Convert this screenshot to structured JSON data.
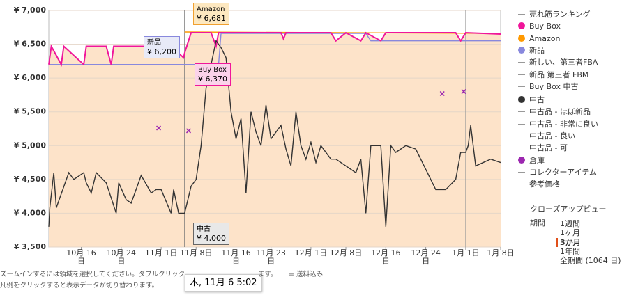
{
  "chart_data": {
    "type": "line",
    "xlim": [
      -6.5,
      84
    ],
    "xticks": [
      {
        "value": 0,
        "label": "10月 16\n日"
      },
      {
        "value": 8,
        "label": "10月 24\n日"
      },
      {
        "value": 16,
        "label": "11月 1日"
      },
      {
        "value": 23,
        "label": "11月 8日"
      },
      {
        "value": 31,
        "label": "11月 16\n日"
      },
      {
        "value": 38,
        "label": "11月 23\n日"
      },
      {
        "value": 46,
        "label": "12月 1日"
      },
      {
        "value": 53,
        "label": "12月 8日"
      },
      {
        "value": 61,
        "label": "12月 16\n日"
      },
      {
        "value": 69,
        "label": "12月 24\n日"
      },
      {
        "value": 77,
        "label": "1月 1日"
      },
      {
        "value": 84,
        "label": "1月 8日"
      }
    ],
    "ylim": [
      3500,
      7000
    ],
    "yticks": [
      {
        "value": 3500,
        "label": "¥ 3,500"
      },
      {
        "value": 4000,
        "label": "¥ 4,000"
      },
      {
        "value": 4500,
        "label": "¥ 4,500"
      },
      {
        "value": 5000,
        "label": "¥ 5,000"
      },
      {
        "value": 5500,
        "label": "¥ 5,500"
      },
      {
        "value": 6000,
        "label": "¥ 6,000"
      },
      {
        "value": 6500,
        "label": "¥ 6,500"
      },
      {
        "value": 7000,
        "label": "¥ 7,000"
      }
    ],
    "grid": true,
    "cursor": 20.7,
    "cursor_label": "木, 11月 6 5:02",
    "series": [
      {
        "name": "Buy Box",
        "color": "#f0169a",
        "fill": "#fde3c9",
        "x": [
          -6.5,
          -6,
          -4,
          -3.5,
          0.5,
          1,
          5,
          6,
          6.5,
          18,
          20.5,
          20.7,
          22,
          26,
          27,
          27.5,
          40,
          40.5,
          41,
          50,
          51,
          53,
          56,
          57,
          60,
          61,
          75,
          76,
          77,
          84
        ],
        "values": [
          6200,
          6470,
          6200,
          6470,
          6200,
          6470,
          6470,
          6200,
          6470,
          6470,
          6300,
          6370,
          6670,
          6670,
          6470,
          6670,
          6670,
          6580,
          6670,
          6670,
          6550,
          6670,
          6550,
          6670,
          6550,
          6670,
          6670,
          6550,
          6670,
          6650
        ],
        "tooltip": {
          "value": 6370,
          "label": "¥ 6,370"
        }
      },
      {
        "name": "Amazon",
        "color": "#ff9900",
        "x": [
          20.7,
          84
        ],
        "values": [
          6681,
          6660
        ],
        "tooltip": {
          "value": 6681,
          "label": "¥ 6,681"
        }
      },
      {
        "name": "新品",
        "color": "#8888dd",
        "x": [
          -6.5,
          20.7,
          27.5,
          28,
          57,
          58,
          84
        ],
        "values": [
          6200,
          6200,
          6200,
          6660,
          6660,
          6550,
          6550
        ],
        "tooltip": {
          "value": 6200,
          "label": "¥ 6,200"
        }
      },
      {
        "name": "中古",
        "color": "#333333",
        "x": [
          -6.5,
          -6.3,
          -5.5,
          -5,
          -2.5,
          -1.5,
          0.5,
          1,
          2,
          3,
          5,
          7,
          7.5,
          9,
          10,
          12,
          14,
          15,
          16,
          18,
          18.5,
          19.5,
          20.7,
          22,
          23,
          24,
          25,
          26,
          27,
          28,
          29,
          30,
          31,
          32,
          33,
          34,
          35,
          36,
          37,
          38,
          40,
          41,
          42,
          43,
          44,
          45,
          46,
          47,
          48,
          50,
          51,
          53,
          55,
          56,
          57,
          58,
          60,
          61,
          62,
          63,
          65,
          67,
          71,
          73,
          75,
          76,
          77,
          77.5,
          78,
          79,
          82,
          84
        ],
        "values": [
          3800,
          4080,
          4600,
          4080,
          4600,
          4500,
          4600,
          4450,
          4300,
          4600,
          4450,
          4000,
          4450,
          4200,
          4150,
          4560,
          4300,
          4350,
          4350,
          4000,
          4350,
          4000,
          4000,
          4400,
          4500,
          5000,
          5850,
          6200,
          6550,
          6450,
          6300,
          5500,
          5100,
          5400,
          4300,
          5500,
          5200,
          5000,
          5600,
          5100,
          5300,
          4950,
          4700,
          5500,
          5000,
          4800,
          5050,
          4750,
          5000,
          4800,
          4800,
          4700,
          4600,
          4800,
          4000,
          5000,
          5000,
          3800,
          5000,
          4900,
          5000,
          4950,
          4350,
          4350,
          4500,
          4900,
          4900,
          5000,
          5300,
          4700,
          4800,
          4750
        ],
        "tooltip": {
          "value": 4000,
          "label": "¥ 4,000"
        }
      },
      {
        "color": "#9c27b0",
        "marker": "x",
        "x": [
          15.5,
          21.5,
          72.3,
          76.6
        ],
        "values": [
          5260,
          5220,
          5770,
          5800
        ]
      }
    ],
    "legend": [
      {
        "name": "売れ筋ランキング"
      },
      {
        "name": "Buy Box",
        "color": "#f0169a"
      },
      {
        "name": "Amazon",
        "color": "#ff9900"
      },
      {
        "name": "新品",
        "color": "#8888dd"
      },
      {
        "name": "新しい、第三者FBA"
      },
      {
        "name": "新品 第三者 FBM"
      },
      {
        "name": "Buy Box 中古"
      },
      {
        "name": "中古",
        "color": "#333333"
      },
      {
        "name": "中古品 - ほぼ新品"
      },
      {
        "name": "中古品 - 非常に良い"
      },
      {
        "name": "中古品 - 良い"
      },
      {
        "name": "中古品 - 可"
      },
      {
        "name": "倉庫",
        "color": "#9c27b0"
      },
      {
        "name": "コレクターアイテム"
      },
      {
        "name": "参考価格"
      }
    ],
    "closeup": "クローズアップビュー",
    "period_label": "期間",
    "periods": [
      "1週間",
      "1ヶ月",
      "3か月",
      "1年間",
      "全期間 (1064 日)"
    ],
    "period_selected": 2,
    "notes": [
      "ズームインするには領域を選択してください。ダブルクリック",
      "ます。",
      "= 送料込み",
      "凡例をクリックすると表示データが切り替わります。"
    ]
  }
}
